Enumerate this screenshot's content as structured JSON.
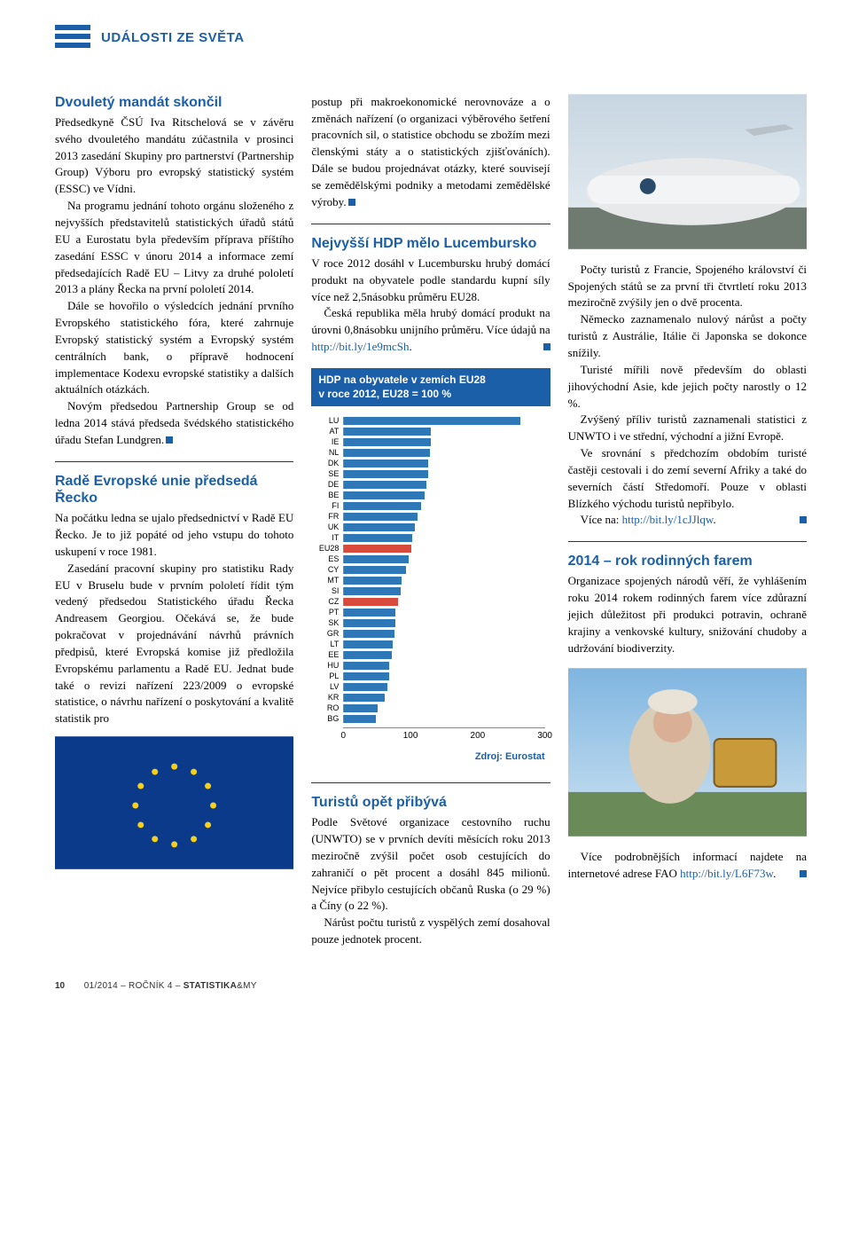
{
  "section_label": "UDÁLOSTI ZE SVĚTA",
  "footer": {
    "page_number": "10",
    "issue": "01/2014 – ROČNÍK 4 – ",
    "magazine_bold": "STATISTIKA",
    "magazine_light": "&MY"
  },
  "articles": {
    "a1": {
      "title": "Dvouletý mandát skončil",
      "p1": "Předsedkyně ČSÚ Iva Ritschelová se v závěru svého dvouletého mandátu zúčastnila v prosinci 2013 zasedání Skupiny pro partnerství (Partnership Group) Výboru pro evropský statistický systém (ESSC) ve Vídni.",
      "p2": "Na programu jednání tohoto orgánu složeného z nejvyšších představitelů statistických úřadů států EU a Eurostatu byla především příprava příštího zasedání ESSC v únoru 2014 a informace zemí předsedajících Radě EU – Litvy za druhé pololetí 2013 a plány Řecka na první pololetí 2014.",
      "p3": "Dále se hovořilo o výsledcích jednání prvního Evropského statistického fóra, které zahrnuje Evropský statistický systém a Evropský systém centrálních bank, o přípravě hodnocení implementace Kodexu evropské statistiky a dalších aktuálních otázkách.",
      "p4": "Novým předsedou Partnership Group se od ledna 2014 stává předseda švédského statistického úřadu Stefan Lundgren."
    },
    "a2": {
      "title": "Radě Evropské unie předsedá Řecko",
      "p1": "Na počátku ledna se ujalo předsednictví v Radě EU Řecko. Je to již popáté od jeho vstupu do tohoto uskupení v roce 1981.",
      "p2": "Zasedání pracovní skupiny pro statistiku Rady EU v Bruselu bude v prvním pololetí řídit tým vedený předsedou Statistického úřadu Řecka Andreasem Georgiou. Očekává se, že bude pokračovat v projednávání návrhů právních předpisů, které Evropská komise již předložila Evropskému parlamentu a Radě EU. Jednat bude také o revizi nařízení 223/2009 o evropské statistice, o návrhu nařízení o poskytování a kvalitě statistik pro"
    },
    "a2b": {
      "p1": "postup při makroekonomické nerovnováze a o změnách nařízení (o organizaci výběrového šetření pracovních sil, o statistice obchodu se zbožím mezi členskými státy a o statistických zjišťováních). Dále se budou projednávat otázky, které souvisejí se zemědělskými podniky a metodami zemědělské výroby."
    },
    "a3": {
      "title": "Nejvyšší HDP mělo Lucembursko",
      "p1": "V roce 2012 dosáhl v Lucembursku hrubý domácí produkt na obyvatele podle standardu kupní síly více než 2,5násobku průměru EU28.",
      "p2_a": "Česká republika měla hrubý domácí produkt na úrovni 0,8násobku unijního průměru. Více údajů na ",
      "p2_link": "http://bit.ly/1e9mcSh",
      "p2_b": "."
    },
    "a4": {
      "title": "Turistů opět přibývá",
      "p1": "Podle Světové organizace cestovního ruchu (UNWTO) se v prvních devíti měsících roku 2013 meziročně zvýšil počet osob cestujících do zahraničí o pět procent a dosáhl 845 milionů. Nejvíce přibylo cestujících občanů Ruska (o 29 %) a Číny (o 22 %).",
      "p2": "Nárůst počtu turistů z vyspělých zemí dosahoval pouze jednotek procent."
    },
    "a4b": {
      "p1": "Počty turistů z Francie, Spojeného království či Spojených států se za první tři čtvrtletí roku 2013 meziročně zvýšily jen o dvě procenta.",
      "p2": "Německo zaznamenalo nulový nárůst a počty turistů z Austrálie, Itálie či Japonska se dokonce snížily.",
      "p3": "Turisté mířili nově především do oblasti jihovýchodní Asie, kde jejich počty narostly o 12 %.",
      "p4": "Zvýšený příliv turistů zaznamenali statistici z UNWTO i ve střední, východní a jižní Evropě.",
      "p5": "Ve srovnání s předchozím obdobím turisté častěji cestovali i do zemí severní Afriky a také do severních částí Středomoří. Pouze v oblasti Blízkého východu turistů nepřibylo.",
      "p6_a": "Více na: ",
      "p6_link": "http://bit.ly/1cJJlqw",
      "p6_b": "."
    },
    "a5": {
      "title": "2014 – rok rodinných farem",
      "p1": "Organizace spojených národů věří, že vyhlášením roku 2014 rokem rodinných farem více zdůrazní jejich důležitost při produkci potravin, ochraně krajiny a venkovské kultury, snižování chudoby a udržování biodiverzity.",
      "p2_a": "Více podrobnějších informací najdete na internetové adrese FAO ",
      "p2_link": "http://bit.ly/L6F73w",
      "p2_b": "."
    }
  },
  "chart": {
    "title_l1": "HDP na obyvatele v zemích EU28",
    "title_l2": "v roce 2012, EU28 = 100 %",
    "xmax": 300,
    "ticks": [
      0,
      100,
      200,
      300
    ],
    "bar_color": "#2f78b8",
    "highlight_color": "#d84a3b",
    "highlight_codes": [
      "EU28",
      "CZ"
    ],
    "source": "Zdroj: Eurostat",
    "countries": [
      {
        "code": "LU",
        "value": 263
      },
      {
        "code": "AT",
        "value": 130
      },
      {
        "code": "IE",
        "value": 129
      },
      {
        "code": "NL",
        "value": 128
      },
      {
        "code": "DK",
        "value": 126
      },
      {
        "code": "SE",
        "value": 126
      },
      {
        "code": "DE",
        "value": 123
      },
      {
        "code": "BE",
        "value": 120
      },
      {
        "code": "FI",
        "value": 115
      },
      {
        "code": "FR",
        "value": 109
      },
      {
        "code": "UK",
        "value": 106
      },
      {
        "code": "IT",
        "value": 101
      },
      {
        "code": "EU28",
        "value": 100
      },
      {
        "code": "ES",
        "value": 96
      },
      {
        "code": "CY",
        "value": 92
      },
      {
        "code": "MT",
        "value": 86
      },
      {
        "code": "SI",
        "value": 84
      },
      {
        "code": "CZ",
        "value": 81
      },
      {
        "code": "PT",
        "value": 76
      },
      {
        "code": "SK",
        "value": 76
      },
      {
        "code": "GR",
        "value": 75
      },
      {
        "code": "LT",
        "value": 72
      },
      {
        "code": "EE",
        "value": 71
      },
      {
        "code": "HU",
        "value": 67
      },
      {
        "code": "PL",
        "value": 67
      },
      {
        "code": "LV",
        "value": 64
      },
      {
        "code": "KR",
        "value": 61
      },
      {
        "code": "RO",
        "value": 50
      },
      {
        "code": "BG",
        "value": 47
      }
    ]
  },
  "images": {
    "eu_flag_svg": "eu-flag",
    "airport_svg": "airport-placeholder",
    "beekeeper_svg": "beekeeper-placeholder"
  }
}
